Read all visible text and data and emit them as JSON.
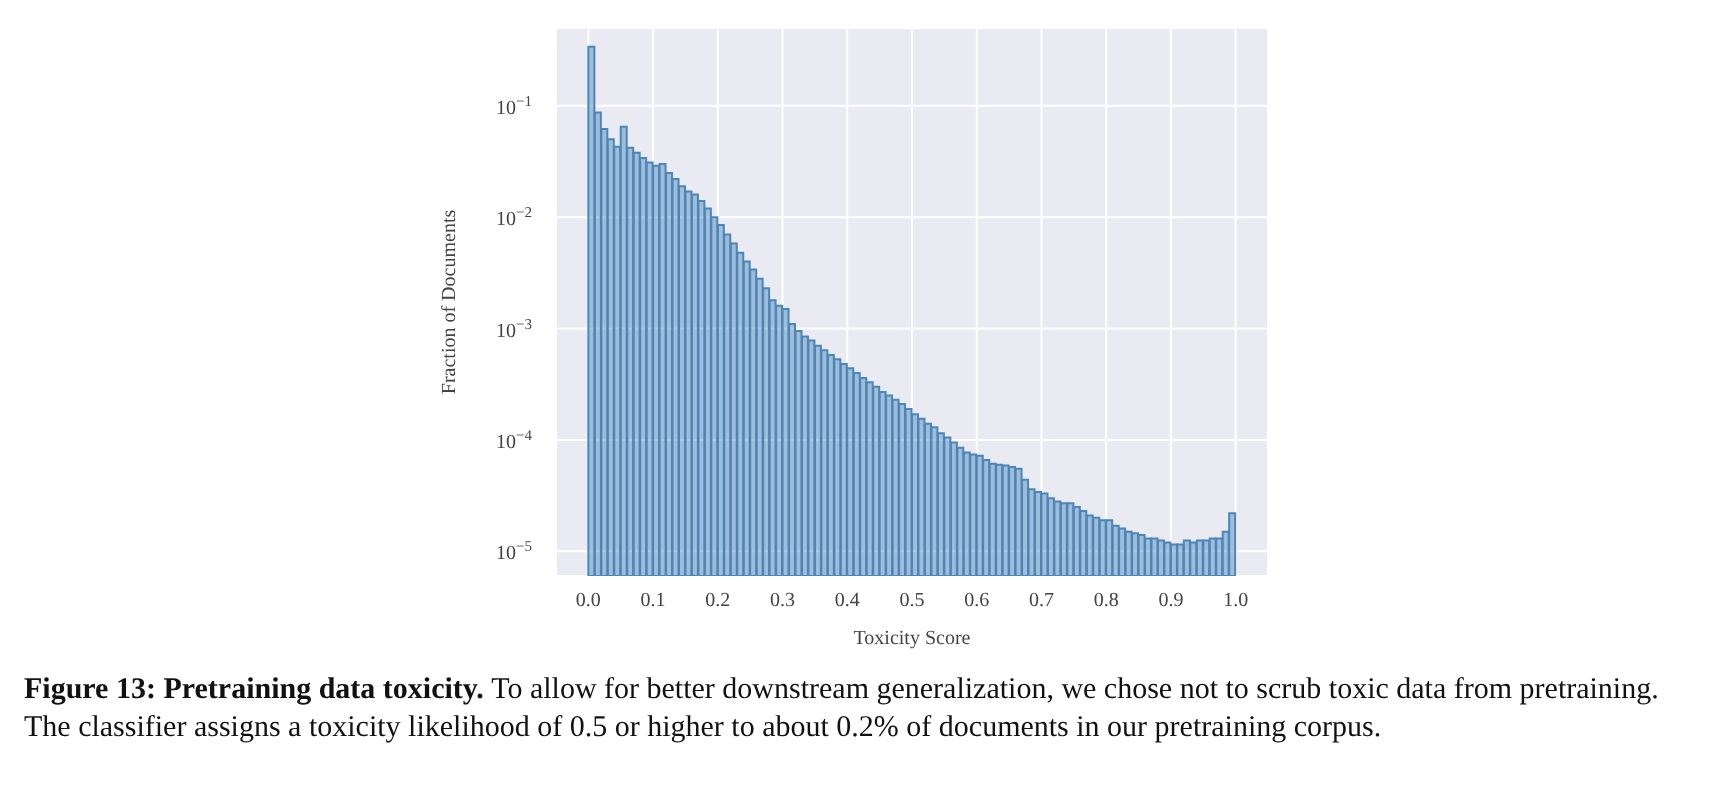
{
  "chart_data": {
    "type": "histogram",
    "xlabel": "Toxicity Score",
    "ylabel": "Fraction of Documents",
    "bins": [
      0,
      0.01,
      0.02,
      0.03,
      0.04,
      0.05,
      0.06,
      0.07,
      0.08,
      0.09,
      0.1,
      0.11,
      0.12,
      0.13,
      0.14,
      0.15,
      0.16,
      0.17,
      0.18,
      0.19,
      0.2,
      0.21,
      0.22,
      0.23,
      0.24,
      0.25,
      0.26,
      0.27,
      0.28,
      0.29,
      0.3,
      0.31,
      0.32,
      0.33,
      0.34,
      0.35,
      0.36,
      0.37,
      0.38,
      0.39,
      0.4,
      0.41,
      0.42,
      0.43,
      0.44,
      0.45,
      0.46,
      0.47,
      0.48,
      0.49,
      0.5,
      0.51,
      0.52,
      0.53,
      0.54,
      0.55,
      0.56,
      0.57,
      0.58,
      0.59,
      0.6,
      0.61,
      0.62,
      0.63,
      0.64,
      0.65,
      0.66,
      0.67,
      0.68,
      0.69,
      0.7,
      0.71,
      0.72,
      0.73,
      0.74,
      0.75,
      0.76,
      0.77,
      0.78,
      0.79,
      0.8,
      0.81,
      0.82,
      0.83,
      0.84,
      0.85,
      0.86,
      0.87,
      0.88,
      0.89,
      0.9,
      0.91,
      0.92,
      0.93,
      0.94,
      0.95,
      0.96,
      0.97,
      0.98,
      0.99,
      1.0
    ],
    "values": [
      0.34,
      0.087,
      0.062,
      0.05,
      0.043,
      0.065,
      0.042,
      0.038,
      0.034,
      0.031,
      0.029,
      0.03,
      0.025,
      0.022,
      0.019,
      0.017,
      0.016,
      0.014,
      0.012,
      0.01,
      0.0085,
      0.007,
      0.0058,
      0.0048,
      0.004,
      0.0034,
      0.0028,
      0.0023,
      0.0018,
      0.0016,
      0.0015,
      0.0011,
      0.00095,
      0.00085,
      0.00078,
      0.0007,
      0.00064,
      0.00058,
      0.00053,
      0.00048,
      0.00044,
      0.0004,
      0.00036,
      0.00033,
      0.0003,
      0.00027,
      0.00025,
      0.00023,
      0.00021,
      0.00019,
      0.00017,
      0.000155,
      0.00014,
      0.00013,
      0.000115,
      0.000105,
      9.5e-05,
      8.5e-05,
      7.7e-05,
      7.4e-05,
      7.2e-05,
      6.6e-05,
      6.1e-05,
      6e-05,
      5.9e-05,
      5.7e-05,
      5.5e-05,
      4.4e-05,
      3.6e-05,
      3.4e-05,
      3.3e-05,
      3e-05,
      2.8e-05,
      2.7e-05,
      2.7e-05,
      2.5e-05,
      2.3e-05,
      2.1e-05,
      2e-05,
      1.9e-05,
      1.9e-05,
      1.7e-05,
      1.6e-05,
      1.5e-05,
      1.45e-05,
      1.4e-05,
      1.3e-05,
      1.3e-05,
      1.25e-05,
      1.2e-05,
      1.15e-05,
      1.15e-05,
      1.25e-05,
      1.2e-05,
      1.25e-05,
      1.25e-05,
      1.3e-05,
      1.3e-05,
      1.5e-05,
      2.2e-05
    ],
    "color": "#4a86b8",
    "log": "y",
    "xlim": [
      -0.05,
      1.05
    ],
    "xticks": [
      {
        "value": 0,
        "label": "0.0"
      },
      0.1,
      0.2,
      0.3,
      0.4,
      0.5,
      0.6,
      0.7,
      0.8,
      0.9,
      {
        "value": 1,
        "label": "1.0"
      }
    ],
    "ylim": [
      6e-06,
      0.5
    ],
    "yticks": [
      {
        "value": 1e-05,
        "label": "10$^{−5}$"
      },
      {
        "value": 0.0001,
        "label": "10$^{−4}$"
      },
      {
        "value": 0.001,
        "label": "10$^{−3}$"
      },
      {
        "value": 0.01,
        "label": "10$^{−2}$"
      },
      {
        "value": 0.1,
        "label": "10$^{−1}$"
      }
    ],
    "grid": true,
    "annotations": [
      "Figure 13: Pretraining data toxicity.",
      "To allow for better downstream generalization, we chose not to scrub toxic data from pretraining. The classifier assigns a toxicity likelihood of 0.5 or higher to about 0.2% of documents in our pretraining corpus."
    ]
  }
}
